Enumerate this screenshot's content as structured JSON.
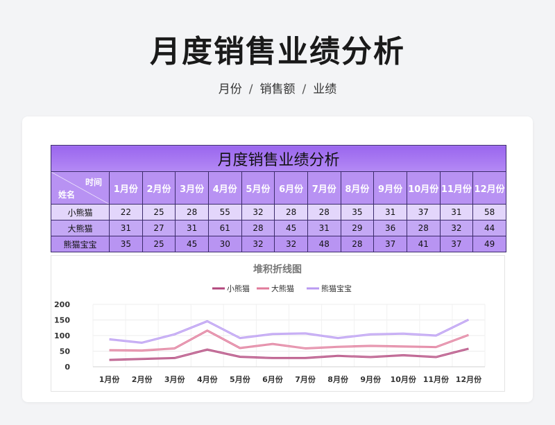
{
  "page": {
    "title": "月度销售业绩分析"
  },
  "breadcrumb": [
    "月份",
    "销售额",
    "业绩"
  ],
  "sheet": {
    "title": "月度销售业绩分析",
    "corner_top": "时间",
    "corner_bottom": "姓名",
    "months": [
      "1月份",
      "2月份",
      "3月份",
      "4月份",
      "5月份",
      "6月份",
      "7月份",
      "8月份",
      "9月份",
      "10月份",
      "11月份",
      "12月份"
    ],
    "rows": [
      {
        "name": "小熊猫",
        "values": [
          22,
          25,
          28,
          55,
          32,
          28,
          28,
          35,
          31,
          37,
          31,
          58
        ]
      },
      {
        "name": "大熊猫",
        "values": [
          31,
          27,
          31,
          61,
          28,
          45,
          31,
          29,
          36,
          28,
          32,
          44
        ]
      },
      {
        "name": "熊猫宝宝",
        "values": [
          35,
          25,
          45,
          30,
          32,
          32,
          48,
          28,
          37,
          41,
          37,
          49
        ]
      }
    ]
  },
  "colors": {
    "series": [
      "#b2467c",
      "#e07a9a",
      "#b99af2"
    ]
  },
  "chart_data": {
    "type": "line",
    "stacked": true,
    "title": "堆积折线图",
    "categories": [
      "1月份",
      "2月份",
      "3月份",
      "4月份",
      "5月份",
      "6月份",
      "7月份",
      "8月份",
      "9月份",
      "10月份",
      "11月份",
      "12月份"
    ],
    "series": [
      {
        "name": "小熊猫",
        "values": [
          22,
          25,
          28,
          55,
          32,
          28,
          28,
          35,
          31,
          37,
          31,
          58
        ]
      },
      {
        "name": "大熊猫",
        "values": [
          31,
          27,
          31,
          61,
          28,
          45,
          31,
          29,
          36,
          28,
          32,
          44
        ]
      },
      {
        "name": "熊猫宝宝",
        "values": [
          35,
          25,
          45,
          30,
          32,
          32,
          48,
          28,
          37,
          41,
          37,
          49
        ]
      }
    ],
    "ylim": [
      0,
      200
    ],
    "yticks": [
      0,
      50,
      100,
      150,
      200
    ],
    "legend": "top",
    "grid": true
  }
}
